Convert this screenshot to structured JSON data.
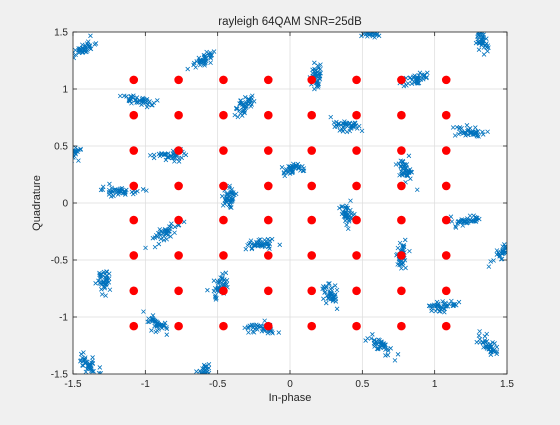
{
  "chart_data": {
    "type": "scatter",
    "title": "rayleigh 64QAM SNR=25dB",
    "xlabel": "In-phase",
    "ylabel": "Quadrature",
    "xlim": [
      -1.5,
      1.5
    ],
    "ylim": [
      -1.5,
      1.5
    ],
    "xticks": [
      -1.5,
      -1,
      -0.5,
      0,
      0.5,
      1,
      1.5
    ],
    "xtick_labels": [
      "-1.5",
      "-1",
      "-0.5",
      "0",
      "0.5",
      "1",
      "1.5"
    ],
    "yticks": [
      -1.5,
      -1,
      -0.5,
      0,
      0.5,
      1,
      1.5
    ],
    "ytick_labels": [
      "-1.5",
      "-1",
      "-0.5",
      "0",
      "0.5",
      "1",
      "1.5"
    ],
    "grid": true,
    "colors": {
      "received": "#0072bd",
      "reference": "#ff0000"
    },
    "reference_levels": [
      -1.08,
      -0.77,
      -0.46,
      -0.15,
      0.15,
      0.46,
      0.77,
      1.08
    ],
    "series": [
      {
        "marker": "x",
        "color": "#0072bd",
        "cluster_centers": [
          [
            -1.42,
            1.36
          ],
          [
            -1.05,
            0.9
          ],
          [
            -0.6,
            1.25
          ],
          [
            -0.32,
            0.85
          ],
          [
            0.18,
            1.12
          ],
          [
            0.55,
            1.5
          ],
          [
            0.88,
            1.08
          ],
          [
            1.33,
            1.42
          ],
          [
            0.38,
            0.68
          ],
          [
            -0.82,
            0.42
          ],
          [
            -1.52,
            0.4
          ],
          [
            -1.18,
            0.1
          ],
          [
            -0.42,
            0.02
          ],
          [
            0.02,
            0.3
          ],
          [
            0.4,
            -0.1
          ],
          [
            0.8,
            0.28
          ],
          [
            1.24,
            0.62
          ],
          [
            1.22,
            -0.16
          ],
          [
            1.48,
            -0.42
          ],
          [
            0.78,
            -0.46
          ],
          [
            -0.85,
            -0.25
          ],
          [
            -0.2,
            -0.36
          ],
          [
            -1.28,
            -0.68
          ],
          [
            -0.48,
            -0.72
          ],
          [
            0.28,
            -0.8
          ],
          [
            1.05,
            -0.9
          ],
          [
            -0.92,
            -1.06
          ],
          [
            -0.2,
            -1.1
          ],
          [
            0.62,
            -1.25
          ],
          [
            1.38,
            -1.26
          ],
          [
            -1.38,
            -1.42
          ],
          [
            -0.6,
            -1.5
          ]
        ]
      },
      {
        "marker": "filled-circle",
        "color": "#ff0000",
        "name": "",
        "description_note": ""
      }
    ]
  }
}
